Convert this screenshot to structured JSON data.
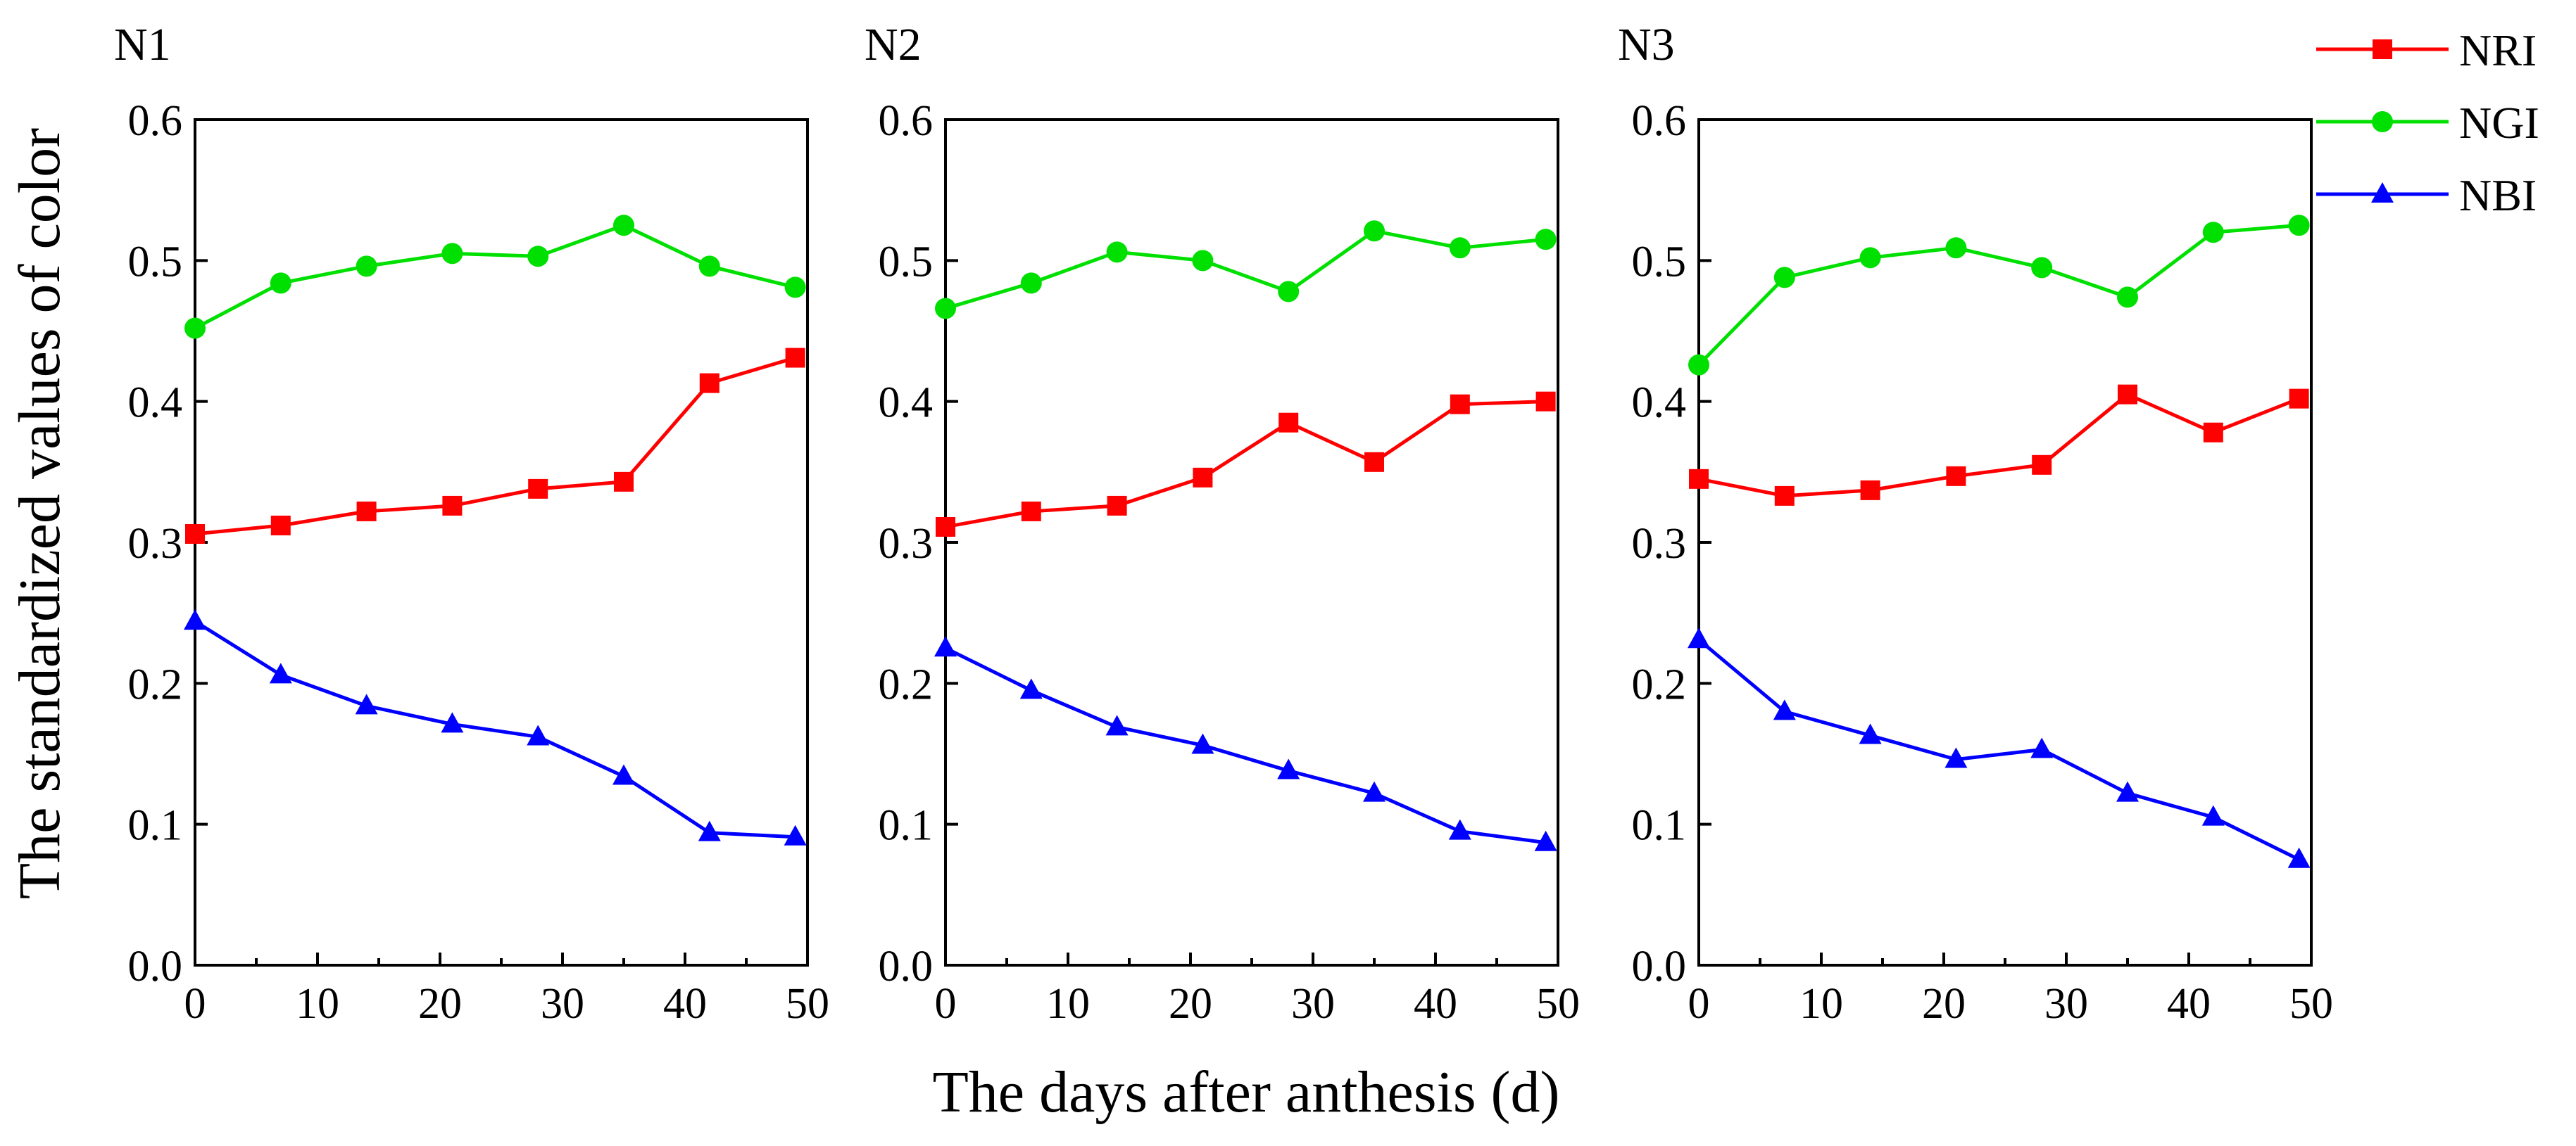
{
  "ylabel": "The standardized values of color",
  "xlabel": "The days after anthesis (d)",
  "legend": [
    {
      "name": "NRI",
      "color": "#ff0000",
      "marker": "square"
    },
    {
      "name": "NGI",
      "color": "#00e000",
      "marker": "circle"
    },
    {
      "name": "NBI",
      "color": "#0000ff",
      "marker": "triangle"
    }
  ],
  "chart_data": [
    {
      "type": "line",
      "title": "N1",
      "x": [
        0,
        7,
        14,
        21,
        28,
        35,
        42,
        49
      ],
      "xlim": [
        0,
        50
      ],
      "ylim": [
        0,
        0.6
      ],
      "xticks": [
        0,
        10,
        20,
        30,
        40,
        50
      ],
      "yticks": [
        "0.0",
        "0.1",
        "0.2",
        "0.3",
        "0.4",
        "0.5",
        "0.6"
      ],
      "series": [
        {
          "name": "NRI",
          "values": [
            0.306,
            0.312,
            0.322,
            0.326,
            0.338,
            0.343,
            0.413,
            0.431
          ]
        },
        {
          "name": "NGI",
          "values": [
            0.452,
            0.484,
            0.496,
            0.505,
            0.503,
            0.525,
            0.496,
            0.481
          ]
        },
        {
          "name": "NBI",
          "values": [
            0.244,
            0.206,
            0.184,
            0.171,
            0.162,
            0.134,
            0.094,
            0.091
          ]
        }
      ]
    },
    {
      "type": "line",
      "title": "N2",
      "x": [
        0,
        7,
        14,
        21,
        28,
        35,
        42,
        49
      ],
      "xlim": [
        0,
        50
      ],
      "ylim": [
        0,
        0.6
      ],
      "xticks": [
        0,
        10,
        20,
        30,
        40,
        50
      ],
      "yticks": [
        "0.0",
        "0.1",
        "0.2",
        "0.3",
        "0.4",
        "0.5",
        "0.6"
      ],
      "series": [
        {
          "name": "NRI",
          "values": [
            0.311,
            0.322,
            0.326,
            0.346,
            0.385,
            0.357,
            0.398,
            0.4
          ]
        },
        {
          "name": "NGI",
          "values": [
            0.466,
            0.484,
            0.506,
            0.5,
            0.478,
            0.521,
            0.509,
            0.515
          ]
        },
        {
          "name": "NBI",
          "values": [
            0.225,
            0.195,
            0.169,
            0.156,
            0.138,
            0.122,
            0.095,
            0.087
          ]
        }
      ]
    },
    {
      "type": "line",
      "title": "N3",
      "x": [
        0,
        7,
        14,
        21,
        28,
        35,
        42,
        49
      ],
      "xlim": [
        0,
        50
      ],
      "ylim": [
        0,
        0.6
      ],
      "xticks": [
        0,
        10,
        20,
        30,
        40,
        50
      ],
      "yticks": [
        "0.0",
        "0.1",
        "0.2",
        "0.3",
        "0.4",
        "0.5",
        "0.6"
      ],
      "series": [
        {
          "name": "NRI",
          "values": [
            0.345,
            0.333,
            0.337,
            0.347,
            0.355,
            0.405,
            0.378,
            0.402
          ]
        },
        {
          "name": "NGI",
          "values": [
            0.426,
            0.488,
            0.502,
            0.509,
            0.495,
            0.474,
            0.52,
            0.525
          ]
        },
        {
          "name": "NBI",
          "values": [
            0.231,
            0.18,
            0.163,
            0.146,
            0.153,
            0.122,
            0.105,
            0.075
          ]
        }
      ]
    }
  ]
}
